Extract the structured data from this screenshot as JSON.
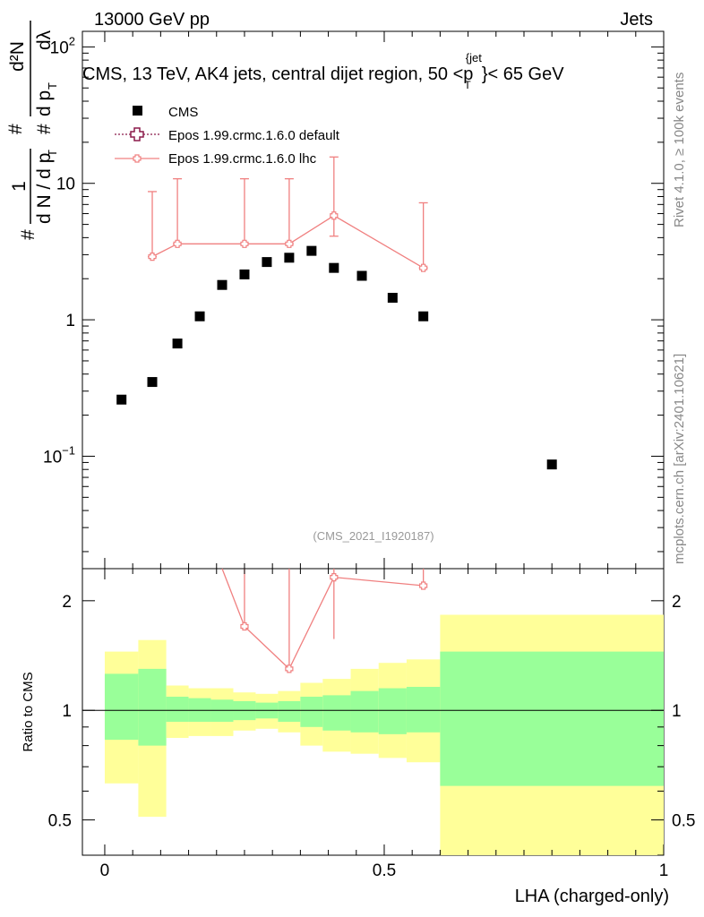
{
  "header": {
    "left": "13000 GeV pp",
    "right": "Jets"
  },
  "side": {
    "rivet": "Rivet 4.1.0, ≥ 100k events",
    "mcplots": "mcplots.cern.ch [arXiv:2401.10621]"
  },
  "chart_data": [
    {
      "type": "scatter",
      "panel": "main",
      "title": "CMS, 13 TeV, AK4 jets, central dijet region, 50 <p_T^{jet}< 65 GeV",
      "title_parts": {
        "pre": "CMS, 13 TeV, AK4 jets, central dijet region, 50 <",
        "p": "p",
        "sub": "T",
        "sup": "{jet",
        "post": "}< 65 GeV"
      },
      "ylabel_parts": {
        "num": "1",
        "den": "d N / d p",
        "den_sub": "T",
        "hash": "#",
        "hash2": "#",
        "hash3": "#",
        "r_num": "d²N",
        "r_den": "d p",
        "r_den_sub": "T",
        "r_den2": "dλ"
      },
      "yscale": "log",
      "xlim": [
        -0.04,
        1.0
      ],
      "ylim": [
        0.015,
        130
      ],
      "yticks": [
        {
          "value": 100,
          "base": "10",
          "exp": "2"
        },
        {
          "value": 10,
          "label": "10"
        },
        {
          "value": 1,
          "label": "1"
        },
        {
          "value": 0.1,
          "base": "10",
          "exp": "−1"
        }
      ],
      "watermark": "(CMS_2021_I1920187)",
      "legend": {
        "position": "top-left",
        "entries": [
          {
            "label": "CMS",
            "marker": "square",
            "color": "#000000"
          },
          {
            "label": "Epos 1.99.crmc.1.6.0 default",
            "marker": "cross-open",
            "line": "dotted",
            "color": "#8b1a4a"
          },
          {
            "label": "Epos 1.99.crmc.1.6.0 lhc",
            "marker": "cross-open",
            "line": "solid",
            "color": "#f08080"
          }
        ]
      },
      "series": [
        {
          "name": "CMS",
          "color": "#000000",
          "x": [
            0.03,
            0.085,
            0.13,
            0.17,
            0.21,
            0.25,
            0.29,
            0.33,
            0.37,
            0.41,
            0.46,
            0.515,
            0.57,
            0.8
          ],
          "y": [
            0.26,
            0.35,
            0.67,
            1.06,
            1.8,
            2.15,
            2.65,
            2.85,
            3.2,
            2.4,
            2.1,
            1.45,
            1.06,
            0.087
          ]
        },
        {
          "name": "Epos 1.99.crmc.1.6.0 lhc",
          "color": "#f08080",
          "x": [
            0.085,
            0.13,
            0.25,
            0.33,
            0.41,
            0.57
          ],
          "y": [
            2.9,
            3.6,
            3.6,
            3.6,
            5.8,
            2.4
          ],
          "yerr_lo": [
            0.001,
            0.001,
            0.001,
            0.001,
            1.7,
            0.001
          ],
          "yerr_hi": [
            5.8,
            7.2,
            7.2,
            7.2,
            9.8,
            4.8
          ]
        }
      ]
    },
    {
      "type": "area",
      "panel": "ratio",
      "ylabel": "Ratio to CMS",
      "xlabel": "LHA (charged-only)",
      "yscale": "log",
      "xlim": [
        -0.04,
        1.0
      ],
      "ylim": [
        0.4,
        2.45
      ],
      "yticks": [
        {
          "value": 2,
          "label": "2"
        },
        {
          "value": 1,
          "label": "1"
        },
        {
          "value": 0.5,
          "label": "0.5"
        }
      ],
      "xticks": [
        {
          "value": 0,
          "label": "0"
        },
        {
          "value": 0.5,
          "label": "0.5"
        },
        {
          "value": 1,
          "label": "1"
        }
      ],
      "reference_line": 1,
      "bands": {
        "edges": [
          0.0,
          0.06,
          0.11,
          0.15,
          0.19,
          0.23,
          0.27,
          0.31,
          0.35,
          0.39,
          0.44,
          0.49,
          0.54,
          0.6,
          1.0
        ],
        "yellow_hi": [
          1.45,
          1.56,
          1.17,
          1.15,
          1.15,
          1.12,
          1.11,
          1.13,
          1.19,
          1.22,
          1.3,
          1.35,
          1.38,
          1.83
        ],
        "yellow_lo": [
          0.63,
          0.51,
          0.84,
          0.85,
          0.85,
          0.88,
          0.89,
          0.87,
          0.8,
          0.77,
          0.76,
          0.74,
          0.72,
          0.36
        ],
        "green_hi": [
          1.26,
          1.3,
          1.09,
          1.08,
          1.07,
          1.06,
          1.05,
          1.06,
          1.09,
          1.1,
          1.13,
          1.15,
          1.16,
          1.45
        ],
        "green_lo": [
          0.83,
          0.8,
          0.93,
          0.93,
          0.93,
          0.94,
          0.95,
          0.93,
          0.9,
          0.88,
          0.87,
          0.86,
          0.87,
          0.62
        ],
        "yellow_color": "#ffff99",
        "green_color": "#99ff99"
      },
      "series": [
        {
          "name": "Epos 1.99.crmc.1.6.0 lhc",
          "color": "#f08080",
          "x": [
            0.25,
            0.33,
            0.41,
            0.57
          ],
          "y": [
            1.7,
            1.3,
            2.32,
            2.2
          ],
          "yerr_lo": [
            0.001,
            0.001,
            0.75,
            0.001
          ],
          "yerr_hi": [
            9,
            9,
            9,
            9
          ],
          "offscale_from": {
            "x": 0.21,
            "y": 2.8
          }
        }
      ]
    }
  ]
}
